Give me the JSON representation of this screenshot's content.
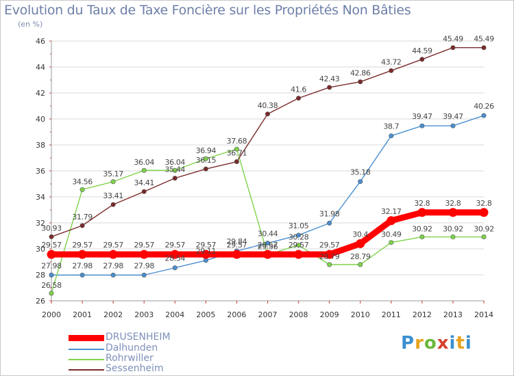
{
  "chart_data": {
    "type": "line",
    "title": "Evolution du Taux de Taxe Foncière sur les Propriétés Non Bâties",
    "unit_label": "(en %)",
    "xlabel": "",
    "ylabel": "",
    "x": [
      2000,
      2001,
      2002,
      2003,
      2004,
      2005,
      2006,
      2007,
      2008,
      2009,
      2010,
      2011,
      2012,
      2013,
      2014
    ],
    "ylim": [
      26,
      46
    ],
    "yticks": [
      26,
      28,
      30,
      32,
      34,
      36,
      38,
      40,
      42,
      44,
      46
    ],
    "grid": "horizontal",
    "legend_position": "bottom-left",
    "series": [
      {
        "name": "DRUSENHEIM",
        "color": "#ff0000",
        "values": [
          29.57,
          29.57,
          29.57,
          29.57,
          29.57,
          29.57,
          29.57,
          29.57,
          29.57,
          29.57,
          30.4,
          32.17,
          32.8,
          32.8,
          32.8
        ],
        "labels": [
          "29.57",
          "29.57",
          "29.57",
          "29.57",
          "29.57",
          "29.57",
          "29.57",
          "29.57",
          "29.57",
          "29.57",
          "30.4",
          "32.17",
          "32.8",
          "32.8",
          "32.8"
        ]
      },
      {
        "name": "Dalhunden",
        "color": "#4a8fd0",
        "values": [
          27.98,
          27.98,
          27.98,
          27.98,
          28.54,
          29.11,
          29.84,
          30.44,
          31.05,
          31.98,
          35.18,
          38.7,
          39.47,
          39.47,
          40.26
        ],
        "labels": [
          "27.98",
          "27.98",
          "27.98",
          "27.98",
          "28.54",
          "29.11",
          "29.84",
          "30.44",
          "31.05",
          "31.98",
          "35.18",
          "38.7",
          "39.47",
          "39.47",
          "40.26"
        ]
      },
      {
        "name": "Rohrwiller",
        "color": "#7fd24a",
        "values": [
          26.58,
          34.56,
          35.17,
          36.04,
          36.04,
          36.94,
          37.68,
          29.56,
          30.28,
          28.79,
          28.79,
          30.49,
          30.92,
          30.92,
          30.92
        ],
        "labels": [
          "26.58",
          "34.56",
          "35.17",
          "36.04",
          "36.04",
          "36.94",
          "37.68",
          "29.56",
          "30.28",
          "28.79",
          "28.79",
          "30.49",
          "30.92",
          "30.92",
          "30.92"
        ]
      },
      {
        "name": "Sessenheim",
        "color": "#7a2a2a",
        "values": [
          30.93,
          31.79,
          33.41,
          34.41,
          35.44,
          36.15,
          36.71,
          40.38,
          41.6,
          42.43,
          42.86,
          43.72,
          44.59,
          45.49,
          45.49
        ],
        "labels": [
          "30.93",
          "31.79",
          "33.41",
          "34.41",
          "35.44",
          "36.15",
          "36.71",
          "40.38",
          "41.6",
          "42.43",
          "42.86",
          "43.72",
          "44.59",
          "45.49",
          "45.49"
        ]
      }
    ]
  },
  "logo_text": "Proxiti"
}
